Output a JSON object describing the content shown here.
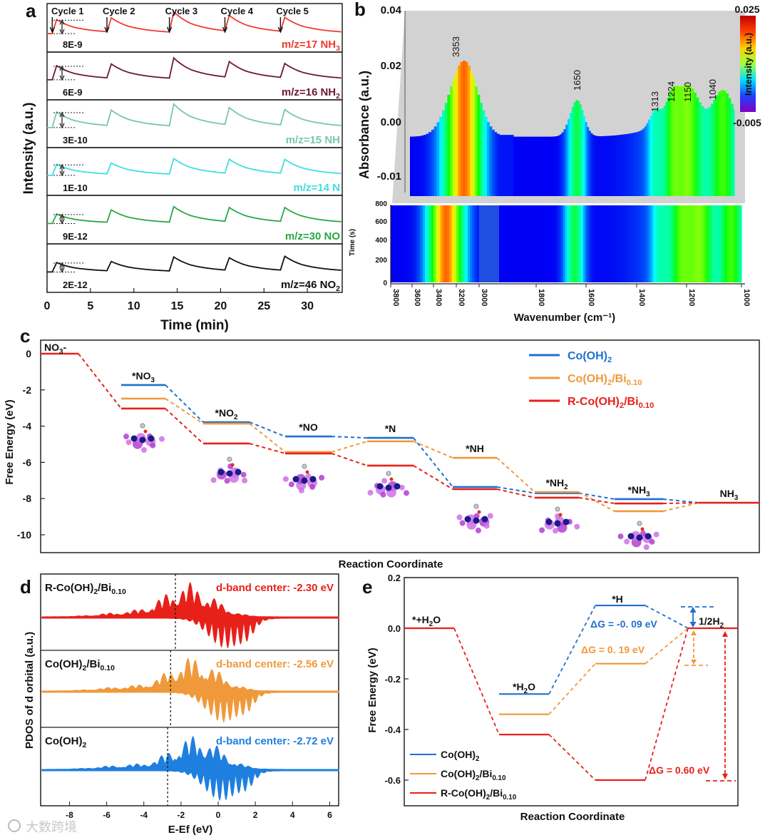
{
  "panels": {
    "a": "a",
    "b": "b",
    "c": "c",
    "d": "d",
    "e": "e"
  },
  "watermark": "大数跨境",
  "colors": {
    "blue": "#1f6fd0",
    "orange": "#f0993a",
    "red": "#e8201a"
  },
  "chart_data": [
    {
      "panel": "a",
      "type": "line",
      "xlabel": "Time (min)",
      "ylabel": "Intensity (a.u.)",
      "xlim": [
        0,
        34
      ],
      "xticks": [
        "0",
        "5",
        "10",
        "15",
        "20",
        "25",
        "30"
      ],
      "cycles": [
        {
          "label": "Cycle 1",
          "t": 0.6
        },
        {
          "label": "Cycle 2",
          "t": 6.9
        },
        {
          "label": "Cycle 3",
          "t": 14.1
        },
        {
          "label": "Cycle 4",
          "t": 20.5
        },
        {
          "label": "Cycle 5",
          "t": 26.9
        }
      ],
      "series": [
        {
          "label": [
            "m/z=17 NH",
            "3"
          ],
          "scale": "8E-9",
          "color": "#ee3b32",
          "peaks": [
            0.9,
            0.9,
            1.3,
            1.0,
            0.9
          ]
        },
        {
          "label": [
            "m/z=16 NH",
            "2"
          ],
          "scale": "6E-9",
          "color": "#6b1a2e",
          "peaks": [
            0.9,
            0.9,
            1.3,
            1.0,
            0.9
          ]
        },
        {
          "label": [
            "m/z=15 NH",
            ""
          ],
          "scale": "3E-10",
          "color": "#76c8a8",
          "peaks": [
            1.0,
            1.0,
            1.4,
            1.1,
            1.0
          ]
        },
        {
          "label": [
            "m/z=14 N",
            ""
          ],
          "scale": "1E-10",
          "color": "#3fdde3",
          "peaks": [
            0.7,
            0.7,
            1.0,
            0.9,
            0.9
          ]
        },
        {
          "label": [
            "m/z=30 NO",
            ""
          ],
          "scale": "9E-12",
          "color": "#28a745",
          "peaks": [
            0.6,
            0.8,
            1.0,
            0.9,
            0.9
          ]
        },
        {
          "label": [
            "m/z=46 NO",
            "2"
          ],
          "scale": "2E-12",
          "color": "#111111",
          "peaks": [
            0.6,
            0.6,
            0.9,
            0.8,
            0.9
          ]
        }
      ]
    },
    {
      "panel": "b",
      "type": "heatmap",
      "xlabel": "Wavenumber (cm⁻¹)",
      "ylabel": "Absorbance (a.u.)",
      "zlabel": "Time (s)",
      "yticks": [
        "0.04",
        "0.02",
        "0.00",
        "-0.01"
      ],
      "time_ticks": [
        "800",
        "600",
        "400",
        "200",
        "0"
      ],
      "xticks": [
        "3800",
        "3600",
        "3400",
        "3200",
        "3000",
        "1800",
        "1600",
        "1400",
        "1200",
        "1000"
      ],
      "peaks": [
        "3353",
        "1650",
        "1313",
        "1224",
        "1150",
        "1040"
      ],
      "colorbar": {
        "label": "Intensity (a.u.)",
        "max": "0.025",
        "min": "-0.005"
      }
    },
    {
      "panel": "c",
      "type": "line",
      "xlabel": "Reaction Coordinate",
      "ylabel": "Free Energy (eV)",
      "ylim": [
        -11,
        0.7
      ],
      "yticks": [
        "0",
        "-2",
        "-4",
        "-6",
        "-8",
        "-10"
      ],
      "categories": [
        [
          "NO",
          "3",
          "-"
        ],
        [
          "*NO",
          "3"
        ],
        [
          "*NO",
          "2"
        ],
        [
          "*NO"
        ],
        [
          "*N"
        ],
        [
          "*NH"
        ],
        [
          "*NH",
          "2"
        ],
        [
          "*NH",
          "3"
        ],
        [
          "NH",
          "3"
        ]
      ],
      "series": [
        {
          "name": [
            "Co(OH)",
            "2"
          ],
          "color": "#1f6fd0",
          "values": [
            0,
            -1.73,
            -3.78,
            -4.57,
            -4.65,
            -7.36,
            -7.7,
            -8.03,
            -8.23
          ]
        },
        {
          "name": [
            "Co(OH)",
            "2",
            "/Bi",
            "0.10"
          ],
          "color": "#f0993a",
          "values": [
            0,
            -2.48,
            -3.86,
            -5.43,
            -4.84,
            -5.75,
            -7.64,
            -8.7,
            -8.23
          ]
        },
        {
          "name": [
            "R-Co(OH)",
            "2",
            "/Bi",
            "0.10"
          ],
          "color": "#e8201a",
          "values": [
            0,
            -3.03,
            -4.96,
            -5.51,
            -6.18,
            -7.48,
            -7.95,
            -8.27,
            -8.23
          ]
        }
      ]
    },
    {
      "panel": "d",
      "type": "area",
      "xlabel": "E-Ef (eV)",
      "ylabel": "PDOS of d orbital (a.u.)",
      "xlim": [
        -9.5,
        6.5
      ],
      "xticks": [
        "-8",
        "-6",
        "-4",
        "-2",
        "0",
        "2",
        "4",
        "6"
      ],
      "series": [
        {
          "name": [
            "R-Co(OH)",
            "2",
            "/Bi",
            "0.10"
          ],
          "d_band_center": -2.3,
          "note": "d-band center: -2.30 eV",
          "color": "#e8201a"
        },
        {
          "name": [
            "Co(OH)",
            "2",
            "/Bi",
            "0.10"
          ],
          "d_band_center": -2.56,
          "note": "d-band center: -2.56 eV",
          "color": "#f0993a"
        },
        {
          "name": [
            "Co(OH)",
            "2"
          ],
          "d_band_center": -2.72,
          "note": "d-band center: -2.72 eV",
          "color": "#1f7fe0"
        }
      ]
    },
    {
      "panel": "e",
      "type": "line",
      "xlabel": "Reaction Coordinate",
      "ylabel": "Free Energy (eV)",
      "ylim": [
        -0.66,
        0.2
      ],
      "yticks": [
        "0.2",
        "0.0",
        "-0.2",
        "-0.4",
        "-0.6"
      ],
      "categories": [
        [
          "*+H",
          "2",
          "O"
        ],
        [
          "*H",
          "2",
          "O"
        ],
        [
          "*H"
        ],
        [
          "1/2H",
          "2"
        ]
      ],
      "series": [
        {
          "name": [
            "Co(OH)",
            "2"
          ],
          "color": "#1f6fd0",
          "values": [
            0,
            -0.26,
            0.09,
            0
          ]
        },
        {
          "name": [
            "Co(OH)",
            "2",
            "/Bi",
            "0.10"
          ],
          "color": "#f0993a",
          "values": [
            0,
            -0.34,
            -0.14,
            0
          ]
        },
        {
          "name": [
            "R-Co(OH)",
            "2",
            "/Bi",
            "0.10"
          ],
          "color": "#e8201a",
          "values": [
            0,
            -0.42,
            -0.6,
            0
          ]
        }
      ],
      "annotations": [
        "ΔG = -0. 09 eV",
        "ΔG = 0. 19 eV",
        "ΔG = 0.60 eV"
      ]
    }
  ]
}
